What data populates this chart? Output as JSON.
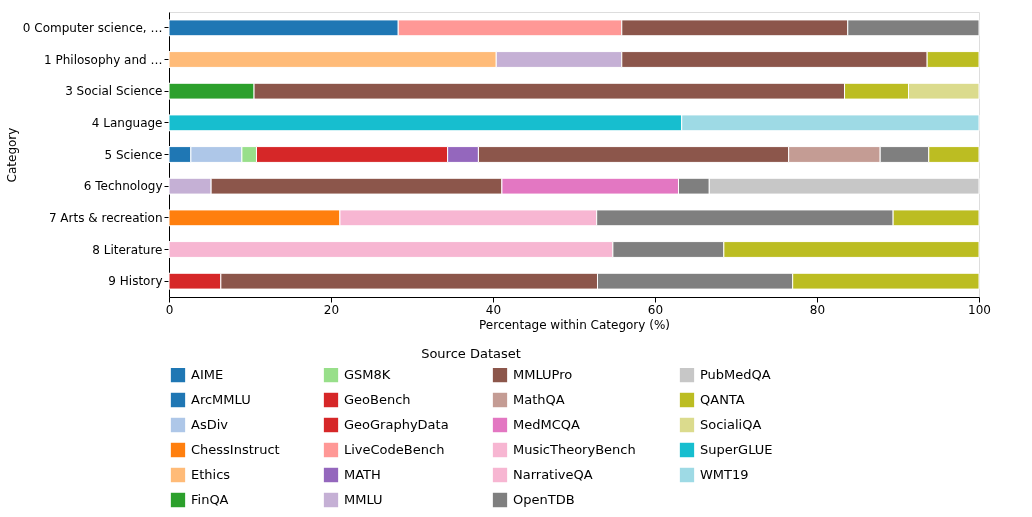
{
  "chart_data": {
    "type": "bar",
    "orientation": "horizontal",
    "stacked": true,
    "xlabel": "Percentage within Category (%)",
    "ylabel": "Category",
    "legend_title": "Source Dataset",
    "legend": "bottom",
    "grid": false,
    "xlim": [
      0,
      100
    ],
    "xticks": [
      0,
      20,
      40,
      60,
      80,
      100
    ],
    "categories": [
      "0 Computer science, …",
      "1 Philosophy and …",
      "3 Social Science",
      "4 Language",
      "5 Science",
      "6 Technology",
      "7 Arts & recreation",
      "8 Literature",
      "9 History"
    ],
    "series": [
      {
        "name": "AIME",
        "color": "#1f77b4",
        "values": [
          null,
          null,
          null,
          null,
          2.7,
          null,
          null,
          null,
          null
        ]
      },
      {
        "name": "ArcMMLU",
        "color": "#1f77b4",
        "values": [
          28.3,
          null,
          null,
          null,
          null,
          null,
          null,
          null,
          null
        ]
      },
      {
        "name": "AsDiv",
        "color": "#aec7e8",
        "values": [
          null,
          null,
          null,
          null,
          6.3,
          null,
          null,
          null,
          null
        ]
      },
      {
        "name": "ChessInstruct",
        "color": "#ff7f0e",
        "values": [
          null,
          null,
          null,
          null,
          null,
          null,
          21.1,
          null,
          null
        ]
      },
      {
        "name": "Ethics",
        "color": "#ffbb78",
        "values": [
          null,
          40.4,
          null,
          null,
          null,
          null,
          null,
          null,
          null
        ]
      },
      {
        "name": "FinQA",
        "color": "#2ca02c",
        "values": [
          null,
          null,
          10.5,
          null,
          null,
          null,
          null,
          null,
          null
        ]
      },
      {
        "name": "GSM8K",
        "color": "#98df8a",
        "values": [
          null,
          null,
          null,
          null,
          1.8,
          null,
          null,
          null,
          null
        ]
      },
      {
        "name": "GeoBench",
        "color": "#d62728",
        "values": [
          null,
          null,
          null,
          null,
          23.6,
          null,
          null,
          null,
          null
        ]
      },
      {
        "name": "GeoGraphyData",
        "color": "#d62728",
        "values": [
          null,
          null,
          null,
          null,
          null,
          null,
          null,
          null,
          6.4
        ]
      },
      {
        "name": "LiveCodeBench",
        "color": "#ff9896",
        "values": [
          27.6,
          null,
          null,
          null,
          null,
          null,
          null,
          null,
          null
        ]
      },
      {
        "name": "MATH",
        "color": "#9467bd",
        "values": [
          null,
          null,
          null,
          null,
          3.8,
          null,
          null,
          null,
          null
        ]
      },
      {
        "name": "MMLU",
        "color": "#c5b0d5",
        "values": [
          null,
          15.5,
          null,
          null,
          null,
          5.2,
          null,
          null,
          null
        ]
      },
      {
        "name": "MMLUPro",
        "color": "#8c564b",
        "values": [
          27.9,
          37.7,
          72.9,
          null,
          38.3,
          35.9,
          null,
          null,
          46.5
        ]
      },
      {
        "name": "MathQA",
        "color": "#c49c94",
        "values": [
          null,
          null,
          null,
          null,
          11.3,
          null,
          null,
          null,
          null
        ]
      },
      {
        "name": "MedMCQA",
        "color": "#e377c2",
        "values": [
          null,
          null,
          null,
          null,
          null,
          21.8,
          null,
          null,
          null
        ]
      },
      {
        "name": "MusicTheoryBench",
        "color": "#f7b6d2",
        "values": [
          null,
          null,
          null,
          null,
          null,
          null,
          31.7,
          null,
          null
        ]
      },
      {
        "name": "NarrativeQA",
        "color": "#f7b6d2",
        "values": [
          null,
          null,
          null,
          null,
          null,
          null,
          null,
          54.8,
          null
        ]
      },
      {
        "name": "OpenTDB",
        "color": "#7f7f7f",
        "values": [
          16.2,
          null,
          null,
          null,
          6.0,
          3.8,
          36.6,
          13.7,
          24.1
        ]
      },
      {
        "name": "PubMedQA",
        "color": "#c7c7c7",
        "values": [
          null,
          null,
          null,
          null,
          null,
          33.3,
          null,
          null,
          null
        ]
      },
      {
        "name": "QANTA",
        "color": "#bcbd22",
        "values": [
          null,
          6.4,
          7.9,
          null,
          6.2,
          null,
          10.6,
          31.5,
          23.0
        ]
      },
      {
        "name": "SocialiQA",
        "color": "#dbdb8d",
        "values": [
          null,
          null,
          8.7,
          null,
          null,
          null,
          null,
          null,
          null
        ]
      },
      {
        "name": "SuperGLUE",
        "color": "#17becf",
        "values": [
          null,
          null,
          null,
          63.3,
          null,
          null,
          null,
          null,
          null
        ]
      },
      {
        "name": "WMT19",
        "color": "#9edae5",
        "values": [
          null,
          null,
          null,
          36.7,
          null,
          null,
          null,
          null,
          null
        ]
      }
    ]
  }
}
